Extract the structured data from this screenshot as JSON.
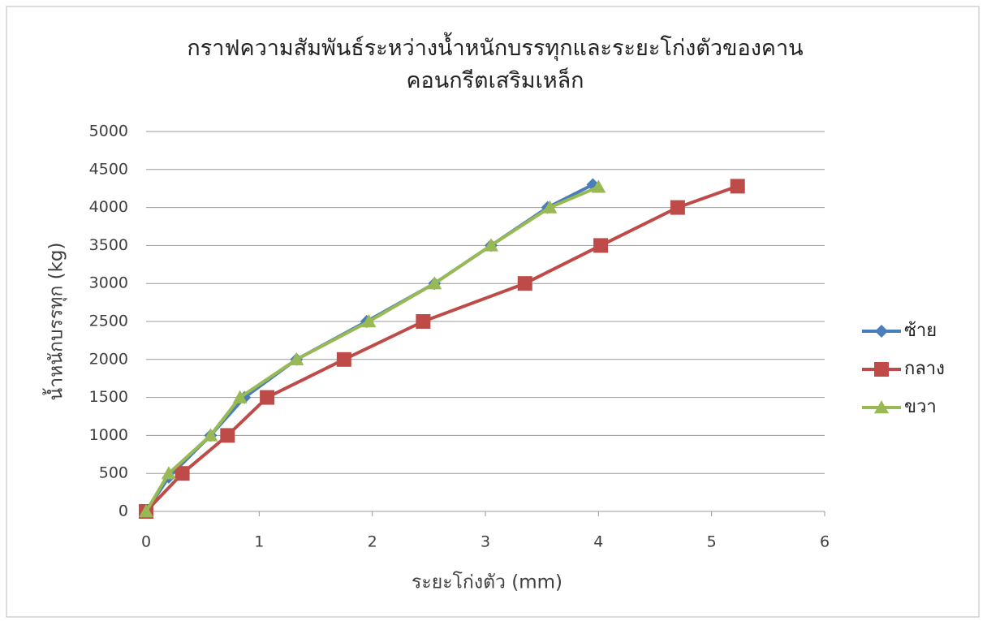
{
  "chart_data": {
    "type": "line",
    "title": "กราฟความสัมพันธ์ระหว่างน้ำหนักบรรทุกและระยะโก่งตัวของคานคอนกรีตเสริมเหล็ก",
    "x_label": "ระยะโก่งตัว (mm)",
    "y_label": "น้ำหนักบรรทุก (kg)",
    "xlim": [
      0,
      6
    ],
    "xticks": [
      0,
      1,
      2,
      3,
      4,
      5,
      6
    ],
    "ylim": [
      0,
      5000
    ],
    "yticks": [
      0,
      500,
      1000,
      1500,
      2000,
      2500,
      3000,
      3500,
      4000,
      4500,
      5000
    ],
    "grid": true,
    "legend": "right",
    "series": [
      {
        "name": "ซ้าย",
        "color": "#4a7ebb",
        "marker": "diamond",
        "x": [
          0,
          0.2,
          0.57,
          0.87,
          1.33,
          1.95,
          2.55,
          3.05,
          3.55,
          3.95
        ],
        "values": [
          0,
          450,
          1000,
          1500,
          2000,
          2500,
          3000,
          3500,
          4000,
          4300
        ]
      },
      {
        "name": "กลาง",
        "color": "#be4b48",
        "marker": "square",
        "x": [
          0,
          0.32,
          0.72,
          1.07,
          1.75,
          2.45,
          3.35,
          4.02,
          4.7,
          5.23
        ],
        "values": [
          0,
          500,
          1000,
          1500,
          2000,
          2500,
          3000,
          3500,
          4000,
          4280
        ]
      },
      {
        "name": "ขวา",
        "color": "#98b954",
        "marker": "triangle",
        "x": [
          0,
          0.2,
          0.57,
          0.83,
          1.33,
          1.97,
          2.55,
          3.05,
          3.57,
          4.0
        ],
        "values": [
          0,
          500,
          1000,
          1500,
          2000,
          2500,
          3000,
          3500,
          4000,
          4270
        ]
      }
    ]
  }
}
